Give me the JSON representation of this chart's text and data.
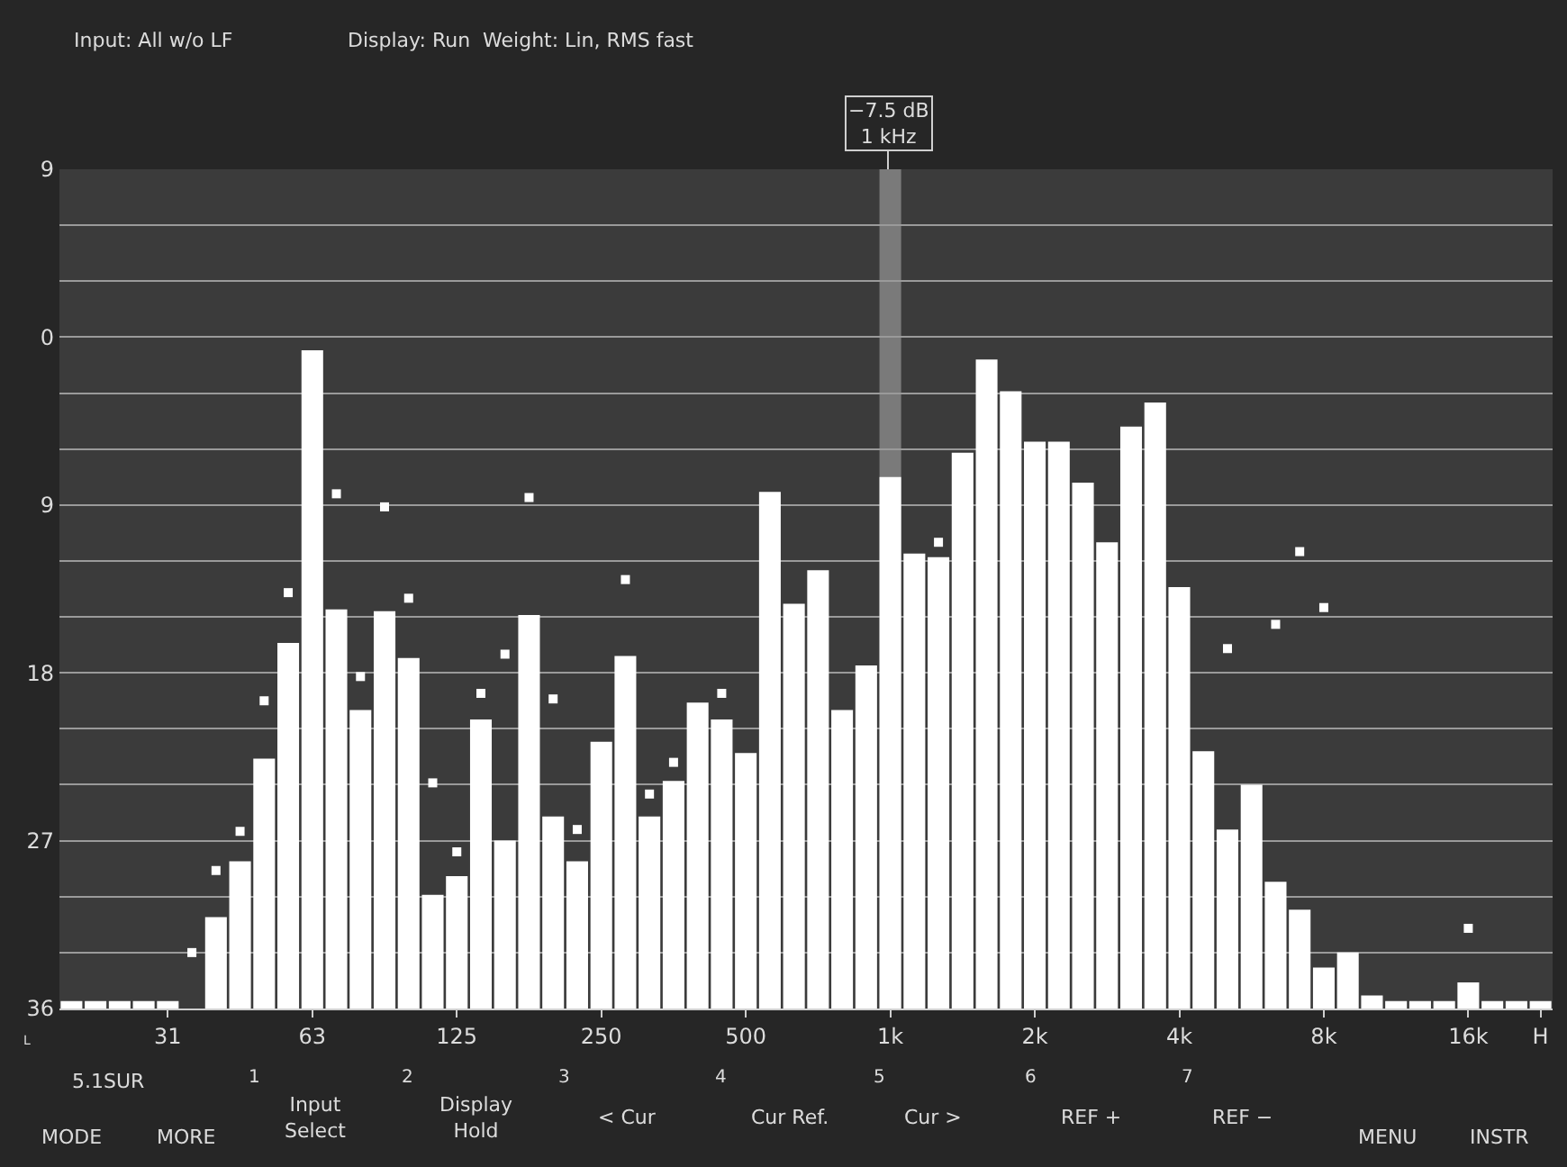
{
  "chart_data": {
    "type": "bar",
    "annotations": [
      "Input: All w/o LF",
      "Display: Run  Weight: Lin, RMS fast",
      "L",
      "5.1SUR",
      "MODE",
      "MORE",
      "1",
      "Input\nSelect",
      "2",
      "Display\nHold",
      "3",
      "< Cur",
      "4",
      "Cur Ref.",
      "5",
      "Cur >",
      "6",
      "REF +",
      "7",
      "REF −",
      "MENU",
      "INSTR",
      "−7.5 dB\n1 kHz"
    ],
    "categories": [
      null,
      null,
      null,
      null,
      "31",
      null,
      null,
      null,
      null,
      null,
      "63",
      null,
      null,
      null,
      null,
      null,
      "125",
      null,
      null,
      null,
      null,
      null,
      "250",
      null,
      null,
      null,
      null,
      null,
      "500",
      null,
      null,
      null,
      null,
      null,
      "1k",
      null,
      null,
      null,
      null,
      null,
      "2k",
      null,
      null,
      null,
      null,
      null,
      "4k",
      null,
      null,
      null,
      null,
      null,
      "8k",
      null,
      null,
      null,
      null,
      null,
      "16k",
      null,
      null,
      "H"
    ],
    "series": [
      {
        "color": "#ffffff",
        "base": [
          -36,
          -36,
          -36,
          -36,
          -36,
          null,
          -36,
          -36,
          -36,
          -36,
          -36,
          -36,
          -36,
          -36,
          -36,
          -36,
          -36,
          -36,
          -36,
          -36,
          -36,
          -36,
          -36,
          -36,
          -36,
          -36,
          -36,
          -36,
          -36,
          -36,
          -36,
          -36,
          -36,
          -36,
          -36,
          -36,
          -36,
          -36,
          -36,
          -36,
          -36,
          -36,
          -36,
          -36,
          -36,
          -36,
          -36,
          -36,
          -36,
          -36,
          -36,
          -36,
          -36,
          -36,
          -36,
          -36,
          -36,
          -36,
          -36,
          -36,
          -36,
          -36
        ],
        "values": [
          0.4,
          0.4,
          0.4,
          0.4,
          0.4,
          null,
          4.9,
          7.9,
          13.4,
          19.6,
          35.3,
          21.4,
          16.0,
          21.3,
          18.8,
          6.1,
          7.1,
          15.5,
          9.0,
          21.1,
          10.3,
          7.9,
          14.3,
          18.9,
          10.3,
          12.2,
          16.4,
          15.5,
          13.7,
          27.7,
          21.7,
          23.5,
          16.0,
          18.4,
          28.5,
          24.4,
          24.2,
          29.8,
          34.8,
          33.1,
          30.4,
          30.4,
          28.2,
          25.0,
          31.2,
          32.5,
          22.6,
          13.8,
          9.6,
          12.0,
          6.8,
          5.3,
          2.2,
          3.0,
          0.7,
          0.4,
          0.4,
          0.4,
          1.4,
          0.4,
          0.4,
          0.4
        ]
      },
      {
        "type": "scatter",
        "color": "#ffffff",
        "values": [
          null,
          null,
          null,
          null,
          null,
          -33.0,
          -28.6,
          -26.5,
          -19.5,
          -13.7,
          null,
          -8.4,
          -18.2,
          -9.1,
          -14.0,
          -23.9,
          -27.6,
          -19.1,
          -17.0,
          -8.6,
          -19.4,
          -26.4,
          null,
          -13.0,
          -24.5,
          -22.8,
          null,
          -19.1,
          null,
          null,
          null,
          null,
          null,
          null,
          null,
          null,
          -11.0,
          null,
          null,
          null,
          null,
          null,
          null,
          null,
          null,
          null,
          null,
          null,
          -16.7,
          null,
          -15.4,
          -11.5,
          -14.5,
          null,
          null,
          null,
          null,
          null,
          -31.7,
          null,
          null,
          null
        ]
      }
    ],
    "bands": [
      {
        "axis": "x",
        "from": "1k",
        "to": "1k",
        "color": "#7a7a7a"
      }
    ],
    "ylim": [
      -36,
      9
    ],
    "yticks": [
      9,
      {
        "value": 6,
        "label": null
      },
      {
        "value": 3,
        "label": null
      },
      0,
      {
        "value": -3,
        "label": null
      },
      {
        "value": -6,
        "label": null
      },
      {
        "value": -9,
        "label": "9"
      },
      {
        "value": -12,
        "label": null
      },
      {
        "value": -15,
        "label": null
      },
      {
        "value": -18,
        "label": "18"
      },
      {
        "value": -21,
        "label": null
      },
      {
        "value": -24,
        "label": null
      },
      {
        "value": -27,
        "label": "27"
      },
      {
        "value": -30,
        "label": null
      },
      {
        "value": -33,
        "label": null
      },
      {
        "value": -36,
        "label": "36"
      }
    ],
    "grid": "y",
    "marker": "square"
  }
}
